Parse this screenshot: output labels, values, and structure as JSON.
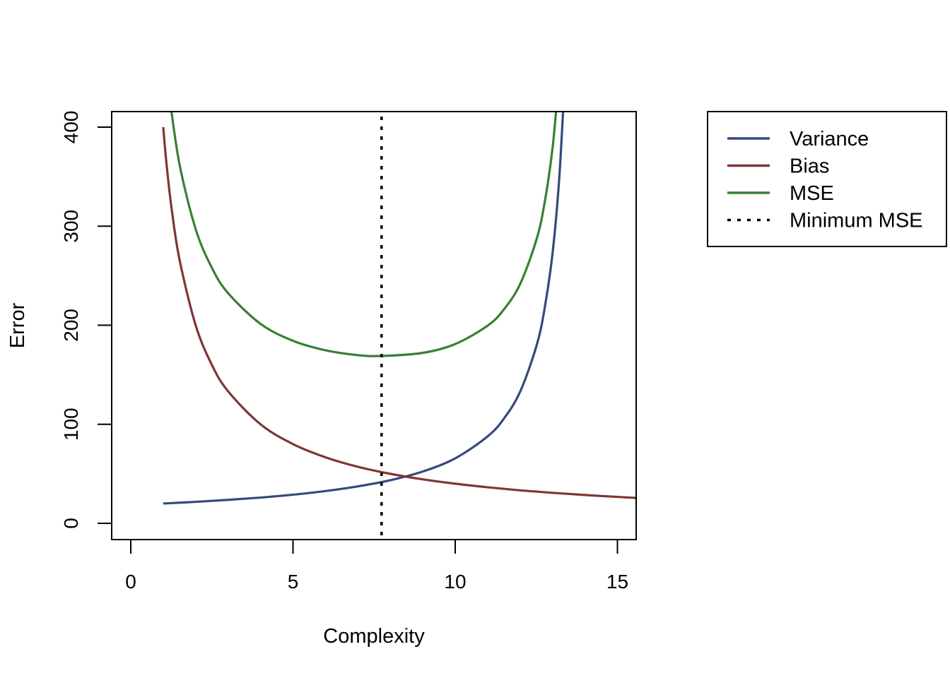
{
  "chart_data": {
    "type": "line",
    "title": "",
    "xlabel": "Complexity",
    "ylabel": "Error",
    "xlim": [
      -0.6,
      15.6
    ],
    "ylim": [
      -16,
      416
    ],
    "xticks": [
      "0",
      "5",
      "10",
      "15"
    ],
    "yticks": [
      "0",
      "100",
      "200",
      "300",
      "400"
    ],
    "grid": false,
    "legend_position": "right",
    "series": [
      {
        "name": "Variance",
        "color": "#344A7A",
        "linestyle": "solid",
        "x": [
          1,
          2,
          3,
          4,
          5,
          6,
          7,
          8,
          9,
          10,
          11,
          11.5,
          12,
          12.5,
          12.75,
          13,
          13.2,
          13.35
        ],
        "y": [
          20.0,
          21.7,
          23.7,
          26.0,
          28.9,
          32.6,
          37.3,
          43.5,
          52.3,
          65.6,
          87.8,
          105.7,
          132.8,
          178.6,
          215.8,
          272.6,
          345.3,
          431.7
        ]
      },
      {
        "name": "Bias",
        "color": "#7F3535",
        "linestyle": "solid",
        "x": [
          1,
          1.1,
          1.25,
          1.5,
          2,
          2.5,
          3,
          4,
          5,
          6,
          7,
          8,
          9,
          10,
          11,
          12,
          13,
          14,
          15,
          15.6
        ],
        "y": [
          400,
          363.6,
          320,
          266.7,
          200,
          160,
          133.3,
          100,
          80,
          66.7,
          57.1,
          50,
          44.4,
          40,
          36.4,
          33.3,
          30.8,
          28.6,
          26.7,
          25.6
        ]
      },
      {
        "name": "MSE",
        "color": "#3A7F35",
        "linestyle": "solid",
        "x": [
          1.2,
          1.5,
          2,
          2.5,
          3,
          4,
          5,
          6,
          7,
          7.73,
          9,
          10,
          11,
          11.5,
          12,
          12.5,
          12.75,
          13,
          13.2
        ],
        "y": [
          429,
          362.9,
          297.1,
          258,
          232.4,
          201.4,
          184.3,
          174.7,
          169.8,
          169,
          172.1,
          181,
          199.6,
          215.9,
          241.5,
          286,
          322.6,
          378.8,
          451
        ]
      }
    ],
    "vlines": [
      {
        "name": "Minimum MSE",
        "x": 7.73,
        "color": "#000000",
        "linestyle": "dotted"
      }
    ]
  }
}
